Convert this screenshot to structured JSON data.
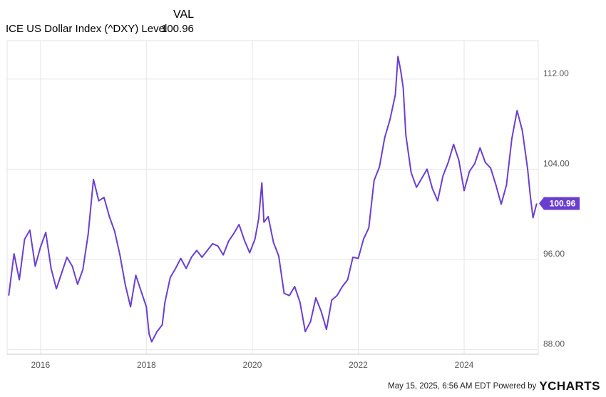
{
  "chart_data": {
    "type": "line",
    "legend_header": "VAL",
    "series": [
      {
        "name": "ICE US Dollar Index (^DXY) Level",
        "last_value_label": "100.96",
        "color": "#6a3fd0",
        "points": [
          [
            2015.4,
            92.8
          ],
          [
            2015.5,
            96.5
          ],
          [
            2015.6,
            94.2
          ],
          [
            2015.7,
            97.8
          ],
          [
            2015.8,
            98.6
          ],
          [
            2015.9,
            95.4
          ],
          [
            2016.0,
            97.1
          ],
          [
            2016.1,
            98.4
          ],
          [
            2016.2,
            95.2
          ],
          [
            2016.3,
            93.4
          ],
          [
            2016.4,
            94.8
          ],
          [
            2016.5,
            96.2
          ],
          [
            2016.6,
            95.4
          ],
          [
            2016.7,
            93.8
          ],
          [
            2016.8,
            95.1
          ],
          [
            2016.9,
            98.2
          ],
          [
            2017.0,
            103.1
          ],
          [
            2017.1,
            101.2
          ],
          [
            2017.2,
            101.5
          ],
          [
            2017.3,
            99.8
          ],
          [
            2017.4,
            98.5
          ],
          [
            2017.5,
            96.4
          ],
          [
            2017.6,
            93.8
          ],
          [
            2017.7,
            91.8
          ],
          [
            2017.8,
            94.6
          ],
          [
            2017.9,
            93.2
          ],
          [
            2018.0,
            91.8
          ],
          [
            2018.05,
            89.4
          ],
          [
            2018.1,
            88.7
          ],
          [
            2018.2,
            89.6
          ],
          [
            2018.3,
            90.2
          ],
          [
            2018.35,
            92.2
          ],
          [
            2018.45,
            94.4
          ],
          [
            2018.55,
            95.2
          ],
          [
            2018.65,
            96.1
          ],
          [
            2018.75,
            95.2
          ],
          [
            2018.85,
            96.2
          ],
          [
            2018.95,
            96.8
          ],
          [
            2019.05,
            96.2
          ],
          [
            2019.15,
            96.8
          ],
          [
            2019.25,
            97.4
          ],
          [
            2019.35,
            97.2
          ],
          [
            2019.45,
            96.4
          ],
          [
            2019.55,
            97.6
          ],
          [
            2019.65,
            98.3
          ],
          [
            2019.75,
            99.1
          ],
          [
            2019.85,
            97.7
          ],
          [
            2019.95,
            96.6
          ],
          [
            2020.05,
            97.8
          ],
          [
            2020.12,
            99.6
          ],
          [
            2020.18,
            102.8
          ],
          [
            2020.22,
            99.3
          ],
          [
            2020.3,
            99.8
          ],
          [
            2020.4,
            97.5
          ],
          [
            2020.5,
            96.3
          ],
          [
            2020.6,
            93.0
          ],
          [
            2020.7,
            92.8
          ],
          [
            2020.8,
            93.6
          ],
          [
            2020.9,
            92.2
          ],
          [
            2021.0,
            89.6
          ],
          [
            2021.1,
            90.5
          ],
          [
            2021.2,
            92.6
          ],
          [
            2021.3,
            91.4
          ],
          [
            2021.4,
            89.8
          ],
          [
            2021.5,
            92.4
          ],
          [
            2021.6,
            92.8
          ],
          [
            2021.7,
            93.6
          ],
          [
            2021.8,
            94.2
          ],
          [
            2021.9,
            96.2
          ],
          [
            2022.0,
            96.1
          ],
          [
            2022.1,
            97.8
          ],
          [
            2022.2,
            98.8
          ],
          [
            2022.3,
            103.0
          ],
          [
            2022.4,
            104.2
          ],
          [
            2022.5,
            106.8
          ],
          [
            2022.6,
            108.4
          ],
          [
            2022.7,
            110.6
          ],
          [
            2022.75,
            114.0
          ],
          [
            2022.8,
            112.8
          ],
          [
            2022.85,
            111.2
          ],
          [
            2022.9,
            107.0
          ],
          [
            2023.0,
            103.7
          ],
          [
            2023.1,
            102.4
          ],
          [
            2023.2,
            103.2
          ],
          [
            2023.3,
            104.0
          ],
          [
            2023.4,
            102.3
          ],
          [
            2023.5,
            101.2
          ],
          [
            2023.6,
            103.4
          ],
          [
            2023.7,
            104.6
          ],
          [
            2023.8,
            106.2
          ],
          [
            2023.9,
            104.8
          ],
          [
            2024.0,
            102.1
          ],
          [
            2024.1,
            103.8
          ],
          [
            2024.2,
            104.5
          ],
          [
            2024.3,
            105.9
          ],
          [
            2024.4,
            104.6
          ],
          [
            2024.5,
            104.1
          ],
          [
            2024.6,
            102.6
          ],
          [
            2024.7,
            100.9
          ],
          [
            2024.8,
            102.6
          ],
          [
            2024.9,
            106.7
          ],
          [
            2025.0,
            109.2
          ],
          [
            2025.1,
            107.4
          ],
          [
            2025.2,
            104.0
          ],
          [
            2025.25,
            101.6
          ],
          [
            2025.3,
            99.7
          ],
          [
            2025.37,
            100.96
          ]
        ]
      }
    ],
    "x_ticks": [
      2016,
      2018,
      2020,
      2022,
      2024
    ],
    "x_tick_labels": [
      "2016",
      "2018",
      "2020",
      "2022",
      "2024"
    ],
    "y_ticks": [
      88,
      96,
      104,
      112
    ],
    "y_tick_labels": [
      "88.00",
      "96.00",
      "104.00",
      "112.00"
    ],
    "xlim": [
      2015.37,
      2025.4
    ],
    "ylim": [
      87.6,
      115.4
    ],
    "grid": true,
    "y_axis_side": "right"
  },
  "footer": {
    "timestamp_text": "May 15, 2025, 6:56 AM EDT Powered by",
    "logo_y": "Y",
    "logo_rest": "CHARTS"
  }
}
